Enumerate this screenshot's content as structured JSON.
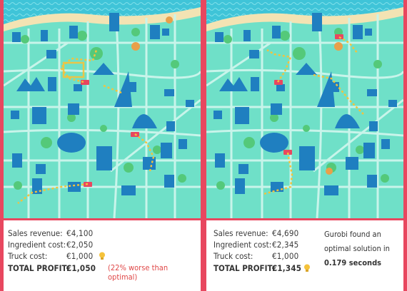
{
  "left_panel": {
    "sales_revenue_label": "Sales revenue:",
    "sales_revenue_value": "€4,100",
    "ingredient_cost_label": "Ingredient cost:",
    "ingredient_cost_value": "€2,050",
    "truck_cost_label": "Truck cost:",
    "truck_cost_value": "€1,000",
    "total_profit_label": "TOTAL PROFIT:",
    "total_profit_value": "€1,050",
    "note_line1": "(22% worse than",
    "note_line2": "optimal)"
  },
  "right_panel": {
    "sales_revenue_label": "Sales revenue:",
    "sales_revenue_value": "€4,690",
    "ingredient_cost_label": "Ingredient cost:",
    "ingredient_cost_value": "€2,345",
    "truck_cost_label": "Truck cost:",
    "truck_cost_value": "€1,000",
    "total_profit_label": "TOTAL PROFIT:",
    "total_profit_value": "€1,345",
    "gurobi_line1": "Gurobi found an",
    "gurobi_line2": "optimal solution in",
    "gurobi_time": "0.179 seconds"
  },
  "colors": {
    "background": "#e8475f",
    "map_ground": "#6fe0c8",
    "roads": "#c8f4ea",
    "buildings": "#1f7fc0",
    "trees": "#54c97a",
    "beach": "#f3e3b3",
    "sea": "#3fc4d8",
    "route": "#f5c23a",
    "note_text": "#e04848"
  },
  "icons": [
    "lightbulb-icon",
    "food-truck-icon"
  ]
}
